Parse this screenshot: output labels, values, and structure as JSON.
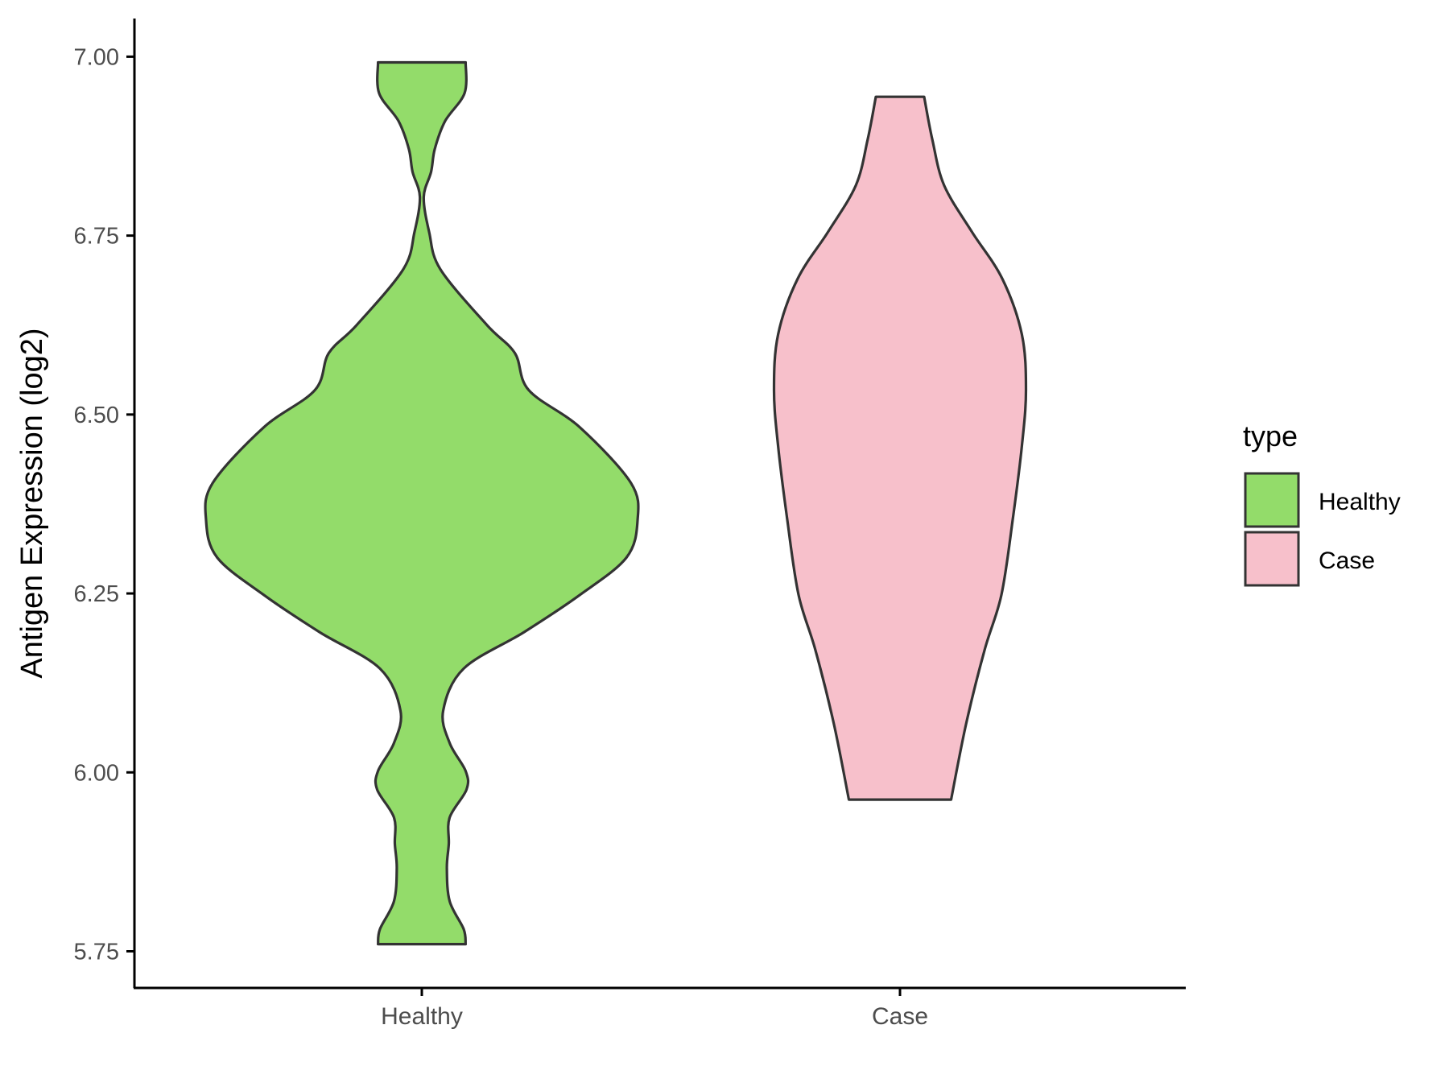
{
  "chart_data": {
    "type": "violin",
    "ylabel": "Antigen Expression (log2)",
    "xlabel": "",
    "categories": [
      "Healthy",
      "Case"
    ],
    "ylim": [
      5.7,
      7.05
    ],
    "yticks": [
      "5.75",
      "6.00",
      "6.25",
      "6.50",
      "6.75",
      "7.00"
    ],
    "grid": false,
    "legend": {
      "title": "type",
      "position": "right",
      "entries": [
        "Healthy",
        "Case"
      ]
    },
    "series": [
      {
        "name": "Healthy",
        "color": "#93DC6A",
        "min": 5.76,
        "max": 6.99,
        "density_profile": [
          [
            5.76,
            0.203
          ],
          [
            5.781,
            0.194
          ],
          [
            5.82,
            0.129
          ],
          [
            5.866,
            0.116
          ],
          [
            5.9,
            0.125
          ],
          [
            5.937,
            0.129
          ],
          [
            5.976,
            0.207
          ],
          [
            6.002,
            0.203
          ],
          [
            6.041,
            0.129
          ],
          [
            6.086,
            0.099
          ],
          [
            6.145,
            0.194
          ],
          [
            6.196,
            0.474
          ],
          [
            6.248,
            0.733
          ],
          [
            6.3,
            0.948
          ],
          [
            6.352,
            1.0
          ],
          [
            6.404,
            0.97
          ],
          [
            6.482,
            0.733
          ],
          [
            6.534,
            0.496
          ],
          [
            6.586,
            0.431
          ],
          [
            6.625,
            0.302
          ],
          [
            6.703,
            0.086
          ],
          [
            6.755,
            0.034
          ],
          [
            6.804,
            0.009
          ],
          [
            6.839,
            0.043
          ],
          [
            6.871,
            0.06
          ],
          [
            6.91,
            0.108
          ],
          [
            6.949,
            0.198
          ],
          [
            6.992,
            0.203
          ]
        ]
      },
      {
        "name": "Case",
        "color": "#F7C0CB",
        "min": 5.96,
        "max": 6.94,
        "density_profile": [
          [
            5.962,
            0.237
          ],
          [
            6.067,
            0.306
          ],
          [
            6.171,
            0.392
          ],
          [
            6.248,
            0.47
          ],
          [
            6.352,
            0.522
          ],
          [
            6.456,
            0.565
          ],
          [
            6.534,
            0.584
          ],
          [
            6.612,
            0.565
          ],
          [
            6.69,
            0.474
          ],
          [
            6.755,
            0.334
          ],
          [
            6.82,
            0.205
          ],
          [
            6.884,
            0.15
          ],
          [
            6.944,
            0.112
          ]
        ]
      }
    ]
  }
}
